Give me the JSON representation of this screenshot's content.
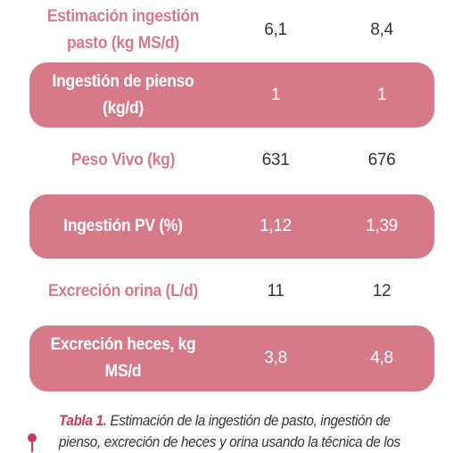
{
  "rows": [
    {
      "label": "Estimación ingestión pasto (kg MS/d)",
      "v1": "6,1",
      "v2": "8,4"
    },
    {
      "label": "Ingestión de pienso (kg/d)",
      "v1": "1",
      "v2": "1"
    },
    {
      "label": "Peso Vivo (kg)",
      "v1": "631",
      "v2": "676"
    },
    {
      "label": "Ingestión PV (%)",
      "v1": "1,12",
      "v2": "1,39"
    },
    {
      "label": "Excreción orina (L/d)",
      "v1": "11",
      "v2": "12"
    },
    {
      "label": "Excreción heces, kg MS/d",
      "v1": "3,8",
      "v2": "4,8"
    }
  ],
  "caption": {
    "lead": "Tabla 1.",
    "text": " Estimación de la ingestión de pasto, ingestión de pienso, excreción de heces y orina usando la técnica de los"
  },
  "colors": {
    "accent": "#d67a89",
    "caption_accent": "#c43c5a"
  }
}
